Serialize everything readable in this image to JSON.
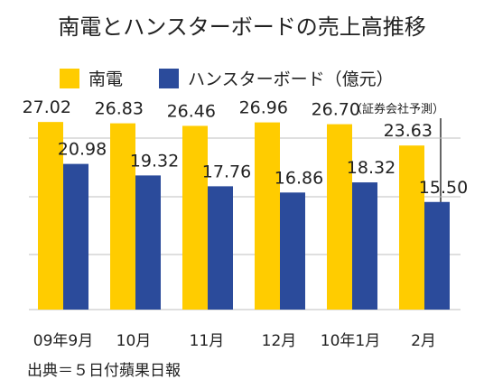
{
  "chart_data": {
    "type": "bar",
    "title": "南電とハンスターボードの売上高推移",
    "categories": [
      "09年9月",
      "10月",
      "11月",
      "12月",
      "10年1月",
      "2月"
    ],
    "series": [
      {
        "name": "南電",
        "color": "#FFCC00",
        "values": [
          27.02,
          26.83,
          26.46,
          26.96,
          26.7,
          23.63
        ]
      },
      {
        "name": "ハンスターボード（億元）",
        "color": "#2B4B9B",
        "values": [
          20.98,
          19.32,
          17.76,
          16.86,
          18.32,
          15.5
        ]
      }
    ],
    "ylim": [
      0,
      31.2
    ],
    "grid": true,
    "legend_position": "top",
    "annotation": "（証券会社予測）",
    "source": "出典＝５日付蘋果日報"
  }
}
